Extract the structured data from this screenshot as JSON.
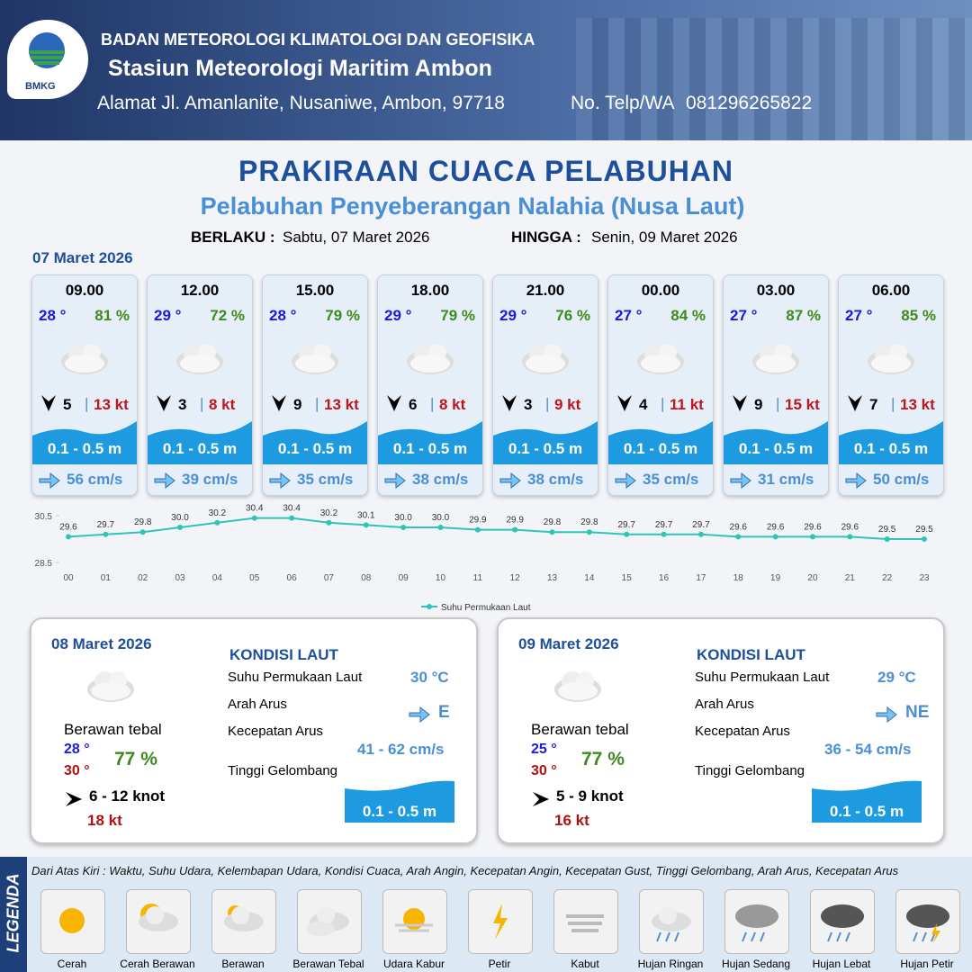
{
  "header": {
    "logo": "BMKG",
    "agency": "BADAN METEOROLOGI KLIMATOLOGI DAN GEOFISIKA",
    "station": "Stasiun Meteorologi Maritim Ambon",
    "address": "Alamat Jl. Amanlanite, Nusaniwe, Ambon, 97718",
    "phone_label": "No. Telp/WA",
    "phone": "081296265822"
  },
  "title": "PRAKIRAAN CUACA PELABUHAN",
  "subtitle": "Pelabuhan Penyeberangan Nalahia (Nusa Laut)",
  "validity": {
    "from_label": "BERLAKU :",
    "from": "Sabtu, 07 Maret 2026",
    "to_label": "HINGGA :",
    "to": "Senin, 09 Maret 2026"
  },
  "today": {
    "date": "07 Maret 2026",
    "forecasts": [
      {
        "time": "09.00",
        "temp": "28 °",
        "humidity": "81 %",
        "wind": "5",
        "gust": "13 kt",
        "wave": "0.1 - 0.5 m",
        "current": "56 cm/s"
      },
      {
        "time": "12.00",
        "temp": "29 °",
        "humidity": "72 %",
        "wind": "3",
        "gust": "8 kt",
        "wave": "0.1 - 0.5 m",
        "current": "39 cm/s"
      },
      {
        "time": "15.00",
        "temp": "28 °",
        "humidity": "79 %",
        "wind": "9",
        "gust": "13 kt",
        "wave": "0.1 - 0.5 m",
        "current": "35 cm/s"
      },
      {
        "time": "18.00",
        "temp": "29 °",
        "humidity": "79 %",
        "wind": "6",
        "gust": "8 kt",
        "wave": "0.1 - 0.5 m",
        "current": "38 cm/s"
      },
      {
        "time": "21.00",
        "temp": "29 °",
        "humidity": "76 %",
        "wind": "3",
        "gust": "9 kt",
        "wave": "0.1 - 0.5 m",
        "current": "38 cm/s"
      },
      {
        "time": "00.00",
        "temp": "27 °",
        "humidity": "84 %",
        "wind": "4",
        "gust": "11 kt",
        "wave": "0.1 - 0.5 m",
        "current": "35 cm/s"
      },
      {
        "time": "03.00",
        "temp": "27 °",
        "humidity": "87 %",
        "wind": "9",
        "gust": "15 kt",
        "wave": "0.1 - 0.5 m",
        "current": "31 cm/s"
      },
      {
        "time": "06.00",
        "temp": "27 °",
        "humidity": "85 %",
        "wind": "7",
        "gust": "13 kt",
        "wave": "0.1 - 0.5 m",
        "current": "50 cm/s"
      }
    ]
  },
  "chart_data": {
    "type": "line",
    "categories": [
      "00",
      "01",
      "02",
      "03",
      "04",
      "05",
      "06",
      "07",
      "08",
      "09",
      "10",
      "11",
      "12",
      "13",
      "14",
      "15",
      "16",
      "17",
      "18",
      "19",
      "20",
      "21",
      "22",
      "23"
    ],
    "series": [
      {
        "name": "Suhu Permukaan Laut",
        "color": "#2ec4b6",
        "values": [
          29.6,
          29.7,
          29.8,
          30.0,
          30.2,
          30.4,
          30.4,
          30.2,
          30.1,
          30.0,
          30.0,
          29.9,
          29.9,
          29.8,
          29.8,
          29.7,
          29.7,
          29.7,
          29.6,
          29.6,
          29.6,
          29.6,
          29.5,
          29.5
        ],
        "value_labels": [
          "29.6",
          "29.7",
          "29.8",
          "30.0",
          "30.2",
          "30.4",
          "30.4",
          "30.2",
          "30.1",
          "30.0",
          "30.0",
          "29.9",
          "29.9",
          "29.8",
          "29.8",
          "29.7",
          "29.7",
          "29.7",
          "29.6",
          "29.6",
          "29.6",
          "29.6",
          "29.5",
          "29.5"
        ]
      }
    ],
    "ylim": [
      28.5,
      30.5
    ],
    "yticks": [
      28.5,
      30.5
    ]
  },
  "sea_heading": "KONDISI LAUT",
  "sea_labels": [
    "Suhu Permukaan Laut",
    "Arah Arus",
    "Kecepatan Arus",
    "Tinggi Gelombang"
  ],
  "days": [
    {
      "date": "08 Maret 2026",
      "condition": "Berawan tebal",
      "temp_min": "28 °",
      "temp_max": "30 °",
      "humidity": "77 %",
      "wind": "6  - 12 knot",
      "gust": "18 kt",
      "sst": "30 °C",
      "current_dir": "E",
      "current_speed": "41 - 62 cm/s",
      "wave": "0.1 - 0.5 m"
    },
    {
      "date": "09 Maret 2026",
      "condition": "Berawan tebal",
      "temp_min": "25 °",
      "temp_max": "30 °",
      "humidity": "77 %",
      "wind": "5  - 9 knot",
      "gust": "16 kt",
      "sst": "29 °C",
      "current_dir": "NE",
      "current_speed": "36 - 54 cm/s",
      "wave": "0.1 - 0.5 m"
    }
  ],
  "legend": {
    "title": "LEGENDA",
    "description": "Dari Atas Kiri : Waktu, Suhu Udara, Kelembapan Udara, Kondisi Cuaca, Arah Angin, Kecepatan Angin, Kecepatan Gust, Tinggi Gelombang, Arah Arus, Kecepatan Arus",
    "items": [
      "Cerah",
      "Cerah Berawan",
      "Berawan",
      "Berawan Tebal",
      "Udara Kabur",
      "Petir",
      "Kabut",
      "Hujan Ringan",
      "Hujan Sedang",
      "Hujan Lebat",
      "Hujan Petir"
    ]
  }
}
